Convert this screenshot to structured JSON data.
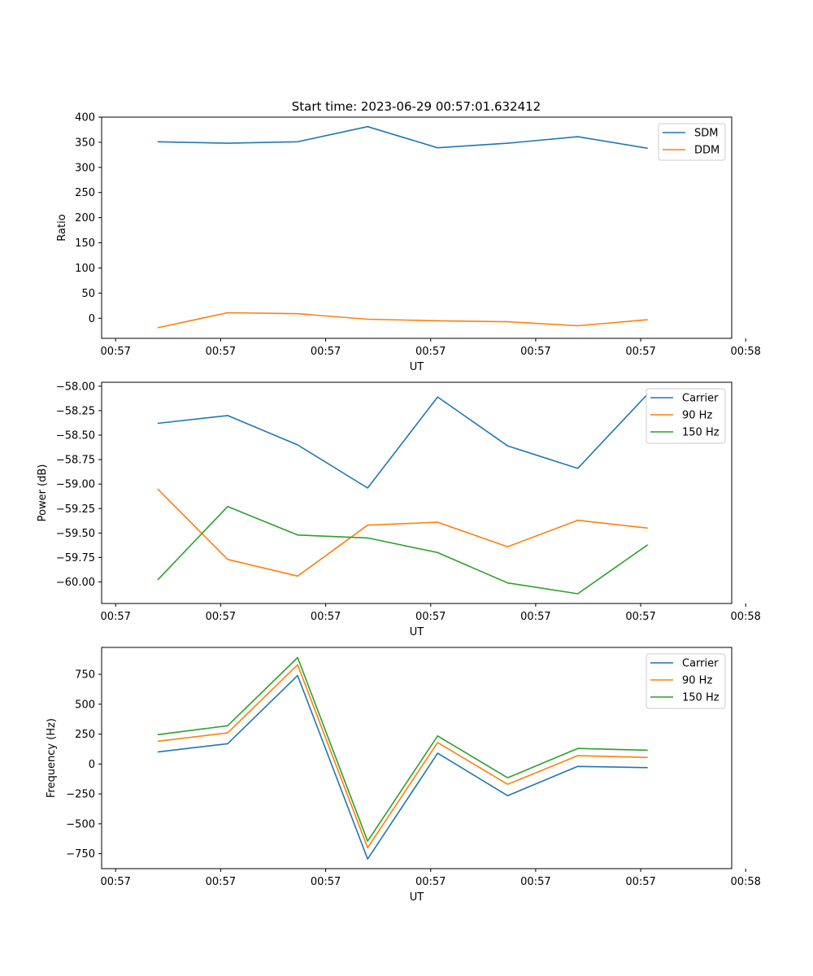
{
  "figure_title": "Start time: 2023-06-29 00:57:01.632412",
  "chart_data": [
    {
      "type": "line",
      "title": "Start time: 2023-06-29 00:57:01.632412",
      "xlabel": "UT",
      "ylabel": "Ratio",
      "x_tick_labels": [
        "00:57",
        "00:57",
        "00:57",
        "00:57",
        "00:57",
        "00:57",
        "00:58"
      ],
      "x": [
        1,
        2,
        3,
        4,
        5,
        6,
        7,
        8
      ],
      "xlim": [
        0.2,
        9.2
      ],
      "x_ticks": [
        0.4,
        1.9,
        3.4,
        4.9,
        6.4,
        7.9,
        9.4
      ],
      "ylim": [
        -40,
        400
      ],
      "y_ticks": [
        0,
        50,
        100,
        150,
        200,
        250,
        300,
        350,
        400
      ],
      "y_tick_labels": [
        "0",
        "50",
        "100",
        "150",
        "200",
        "250",
        "300",
        "350",
        "400"
      ],
      "grid": false,
      "legend_position": "top-right",
      "series": [
        {
          "name": "SDM",
          "color": "#1f77b4",
          "values": [
            351,
            348,
            351,
            381,
            339,
            348,
            361,
            338
          ]
        },
        {
          "name": "DDM",
          "color": "#ff7f0e",
          "values": [
            -19,
            11,
            9,
            -2,
            -5,
            -7,
            -15,
            -3
          ]
        }
      ]
    },
    {
      "type": "line",
      "xlabel": "UT",
      "ylabel": "Power (dB)",
      "x_tick_labels": [
        "00:57",
        "00:57",
        "00:57",
        "00:57",
        "00:57",
        "00:57",
        "00:58"
      ],
      "x": [
        1,
        2,
        3,
        4,
        5,
        6,
        7,
        8
      ],
      "xlim": [
        0.2,
        9.2
      ],
      "x_ticks": [
        0.4,
        1.9,
        3.4,
        4.9,
        6.4,
        7.9,
        9.4
      ],
      "ylim": [
        -60.22,
        -57.96
      ],
      "y_ticks": [
        -60.0,
        -59.75,
        -59.5,
        -59.25,
        -59.0,
        -58.75,
        -58.5,
        -58.25,
        -58.0
      ],
      "y_tick_labels": [
        "−60.00",
        "−59.75",
        "−59.50",
        "−59.25",
        "−59.00",
        "−58.75",
        "−58.50",
        "−58.25",
        "−58.00"
      ],
      "grid": false,
      "legend_position": "top-right",
      "series": [
        {
          "name": "Carrier",
          "color": "#1f77b4",
          "values": [
            -58.38,
            -58.3,
            -58.6,
            -59.04,
            -58.11,
            -58.61,
            -58.84,
            -58.08
          ]
        },
        {
          "name": "90 Hz",
          "color": "#ff7f0e",
          "values": [
            -59.05,
            -59.77,
            -59.94,
            -59.42,
            -59.39,
            -59.64,
            -59.37,
            -59.45
          ]
        },
        {
          "name": "150 Hz",
          "color": "#2ca02c",
          "values": [
            -59.98,
            -59.23,
            -59.52,
            -59.55,
            -59.7,
            -60.01,
            -60.12,
            -59.62
          ]
        }
      ]
    },
    {
      "type": "line",
      "xlabel": "UT",
      "ylabel": "Frequency (Hz)",
      "x_tick_labels": [
        "00:57",
        "00:57",
        "00:57",
        "00:57",
        "00:57",
        "00:57",
        "00:58"
      ],
      "x": [
        1,
        2,
        3,
        4,
        5,
        6,
        7,
        8
      ],
      "xlim": [
        0.2,
        9.2
      ],
      "x_ticks": [
        0.4,
        1.9,
        3.4,
        4.9,
        6.4,
        7.9,
        9.4
      ],
      "ylim": [
        -875,
        975
      ],
      "y_ticks": [
        -750,
        -500,
        -250,
        0,
        250,
        500,
        750
      ],
      "y_tick_labels": [
        "−750",
        "−500",
        "−250",
        "0",
        "250",
        "500",
        "750"
      ],
      "grid": false,
      "legend_position": "top-right",
      "series": [
        {
          "name": "Carrier",
          "color": "#1f77b4",
          "values": [
            100,
            170,
            740,
            -795,
            90,
            -265,
            -20,
            -30
          ]
        },
        {
          "name": "90 Hz",
          "color": "#ff7f0e",
          "values": [
            190,
            260,
            830,
            -700,
            180,
            -170,
            70,
            55
          ]
        },
        {
          "name": "150 Hz",
          "color": "#2ca02c",
          "values": [
            245,
            320,
            890,
            -645,
            235,
            -115,
            130,
            115
          ]
        }
      ]
    }
  ]
}
